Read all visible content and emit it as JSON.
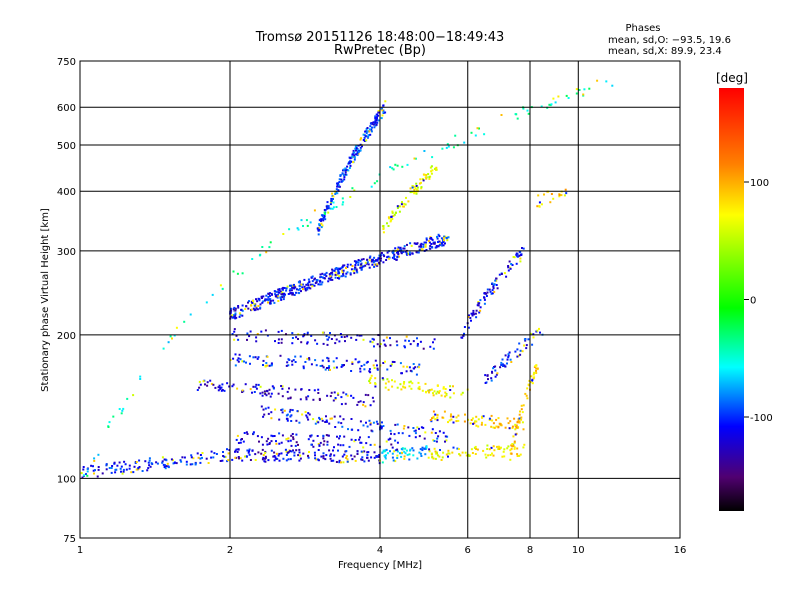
{
  "chart_data": {
    "type": "scatter",
    "title": "Tromsø 20151126 18:48:00−18:49:43",
    "subtitle": "RwPretec (Bp)",
    "xlabel": "Frequency [MHz]",
    "ylabel": "Stationary phase Virtual Height [km]",
    "x_scale": "log",
    "y_scale": "log",
    "xlim": [
      1,
      16
    ],
    "ylim": [
      75,
      750
    ],
    "x_ticks": [
      1,
      2,
      4,
      6,
      8,
      10,
      16
    ],
    "x_tick_labels": [
      "1",
      "2",
      "4",
      "6",
      "8",
      "10",
      "16"
    ],
    "y_ticks": [
      75,
      100,
      200,
      300,
      400,
      500,
      600,
      750
    ],
    "y_tick_labels": [
      "75",
      "100",
      "200",
      "300",
      "400",
      "500",
      "600",
      "750"
    ],
    "grid": true,
    "stats": {
      "header": "Phases",
      "line_o": "mean, sd,O: −93.5, 19.6",
      "line_x": "mean, sd,X:  89.9, 23.4"
    },
    "colorbar": {
      "label": "[deg]",
      "range": [
        -180,
        180
      ],
      "ticks": [
        100,
        0,
        -100
      ],
      "tick_labels": [
        "100",
        "0",
        "-100"
      ]
    },
    "series_regions": [
      {
        "x_range": [
          1.0,
          1.9
        ],
        "h_start": 103,
        "h_end": 111,
        "phase": -100,
        "count": 120
      },
      {
        "x_range": [
          1.9,
          4.0
        ],
        "h_start": 112,
        "h_end": 111,
        "phase": -110,
        "count": 160
      },
      {
        "x_range": [
          4.0,
          5.0
        ],
        "h_start": 111,
        "h_end": 114,
        "phase": -60,
        "count": 60
      },
      {
        "x_range": [
          5.0,
          7.8
        ],
        "h_start": 112,
        "h_end": 115,
        "phase": 80,
        "count": 80
      },
      {
        "x_range": [
          7.3,
          8.3
        ],
        "h_start": 112,
        "h_end": 175,
        "phase": 90,
        "count": 60
      },
      {
        "x_range": [
          2.0,
          4.4
        ],
        "h_start": 122,
        "h_end": 118,
        "phase": -110,
        "count": 100
      },
      {
        "x_range": [
          2.3,
          5.5
        ],
        "h_start": 138,
        "h_end": 122,
        "phase": -100,
        "count": 120
      },
      {
        "x_range": [
          5.0,
          7.8
        ],
        "h_start": 135,
        "h_end": 130,
        "phase": 90,
        "count": 80
      },
      {
        "x_range": [
          1.7,
          3.9
        ],
        "h_start": 158,
        "h_end": 145,
        "phase": -110,
        "count": 110
      },
      {
        "x_range": [
          3.8,
          6.0
        ],
        "h_start": 160,
        "h_end": 150,
        "phase": 70,
        "count": 70
      },
      {
        "x_range": [
          2.0,
          4.8
        ],
        "h_start": 178,
        "h_end": 170,
        "phase": -100,
        "count": 120
      },
      {
        "x_range": [
          2.0,
          5.2
        ],
        "h_start": 200,
        "h_end": 192,
        "phase": -110,
        "count": 100
      },
      {
        "x_range": [
          6.5,
          8.5
        ],
        "h_start": 160,
        "h_end": 205,
        "phase": -100,
        "count": 60
      },
      {
        "x_range": [
          2.0,
          5.5
        ],
        "h_start": 220,
        "h_end": 320,
        "phase": -100,
        "count": 500
      },
      {
        "x_range": [
          3.0,
          4.1
        ],
        "h_start": 330,
        "h_end": 600,
        "phase": -90,
        "count": 220
      },
      {
        "x_range": [
          4.0,
          5.2
        ],
        "h_start": 330,
        "h_end": 450,
        "phase": 70,
        "count": 80
      },
      {
        "x_range": [
          5.8,
          7.8
        ],
        "h_start": 200,
        "h_end": 300,
        "phase": -100,
        "count": 90
      },
      {
        "x_range": [
          8.2,
          9.5
        ],
        "h_start": 380,
        "h_end": 400,
        "phase": 90,
        "count": 20
      },
      {
        "x_range": [
          1.0,
          12.5
        ],
        "h_start": 95,
        "h_end": 700,
        "phase": -40,
        "count": 120
      }
    ]
  }
}
